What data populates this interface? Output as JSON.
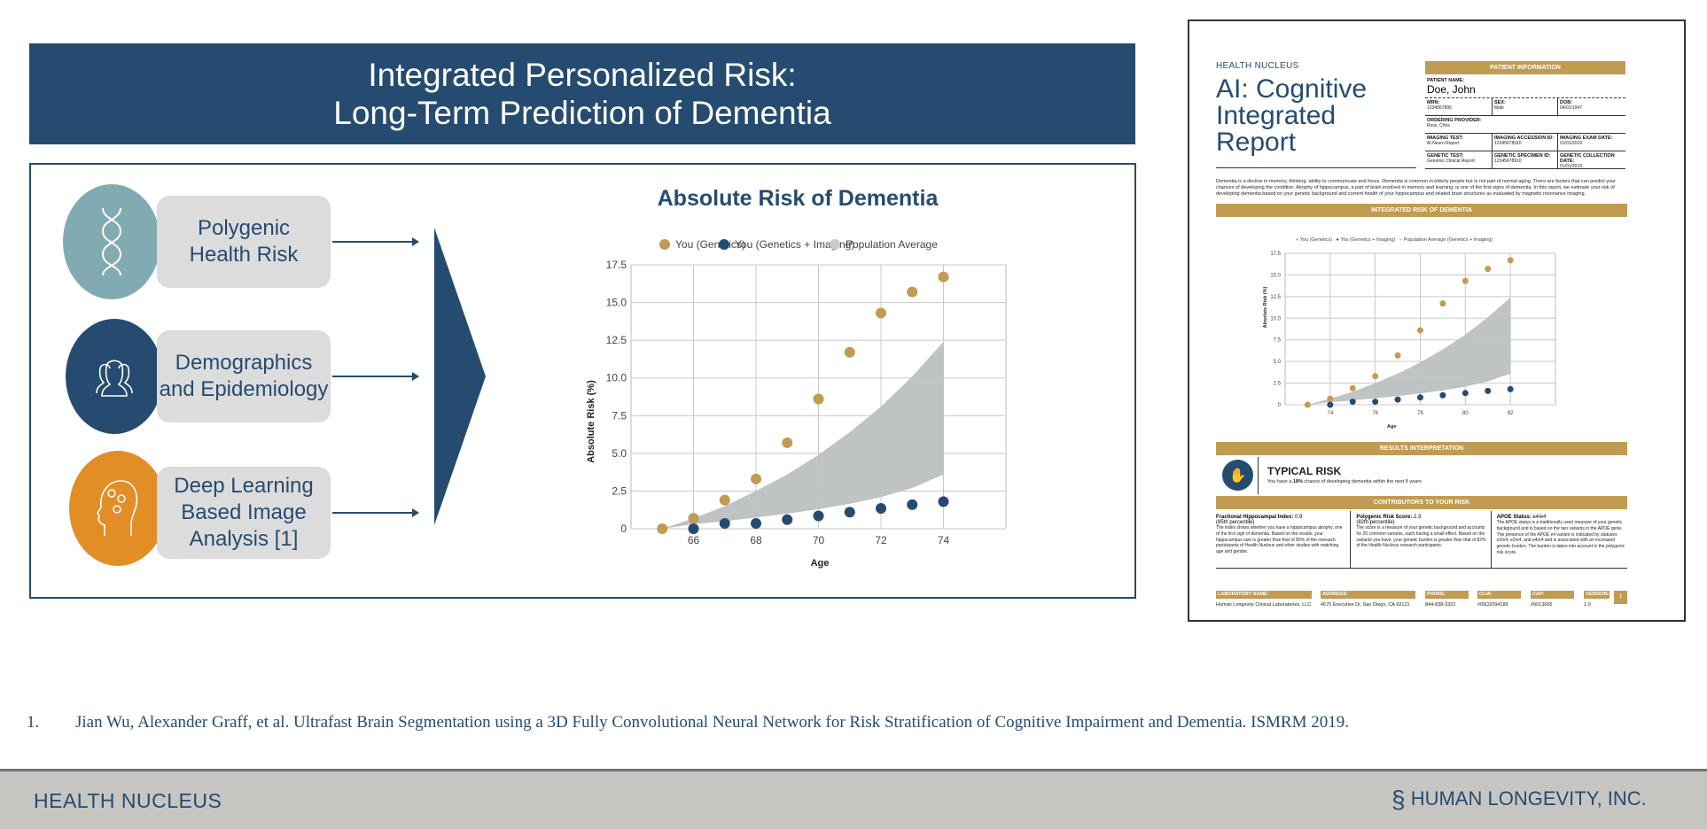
{
  "slide": {
    "title_line1": "Integrated Personalized Risk:",
    "title_line2": "Long-Term Prediction of Dementia",
    "inputs": [
      {
        "icon": "dna-icon",
        "line1": "Polygenic",
        "line2": "Health Risk",
        "color": "#82aab2"
      },
      {
        "icon": "people-icon",
        "line1": "Demographics",
        "line2": "and Epidemiology",
        "color": "#264b70"
      },
      {
        "icon": "head-gears-icon",
        "line1": "Deep Learning",
        "line2": "Based Image",
        "line3": "Analysis [1]",
        "color": "#e38d26"
      }
    ],
    "citation_number": "1.",
    "citation": "Jian Wu, Alexander Graff, et al. Ultrafast Brain Segmentation using a 3D Fully Convolutional Neural Network for Risk Stratification of Cognitive Impairment and Dementia. ISMRM 2019.",
    "footer_left": "HEALTH NUCLEUS",
    "footer_right": "HUMAN LONGEVITY, INC."
  },
  "colors": {
    "navy": "#264b70",
    "gold": "#c19b52",
    "band": "#bcc0c0"
  },
  "chart_data": [
    {
      "type": "scatter",
      "title": "Absolute Risk of Dementia",
      "xlabel": "Age",
      "ylabel": "Absolute Risk (%)",
      "legend": [
        "You (Genetics)",
        "You (Genetics + Imaging)",
        "Population Average"
      ],
      "legend_position": "top",
      "xlim": [
        64,
        76
      ],
      "ylim": [
        0,
        17.5
      ],
      "xticks": [
        66,
        68,
        70,
        72,
        74
      ],
      "yticks": [
        "0",
        "2.5",
        "5.0",
        "7.5",
        "10.0",
        "12.5",
        "15.0",
        "17.5"
      ],
      "grid": true,
      "series": [
        {
          "name": "You (Genetics)",
          "color": "#c19b52",
          "x": [
            65,
            66,
            67,
            68,
            69,
            70,
            71,
            72,
            73,
            74
          ],
          "y": [
            0,
            0.7,
            1.9,
            3.3,
            5.7,
            8.6,
            11.7,
            14.3,
            15.7,
            16.7
          ]
        },
        {
          "name": "You (Genetics + Imaging)",
          "color": "#264b70",
          "x": [
            66,
            67,
            68,
            69,
            70,
            71,
            72,
            73,
            74
          ],
          "y": [
            0,
            0.35,
            0.35,
            0.6,
            0.85,
            1.1,
            1.35,
            1.6,
            1.8
          ]
        },
        {
          "name": "Population Average",
          "type": "band",
          "color": "#bcc0c0",
          "x": [
            65,
            66,
            67,
            68,
            69,
            70,
            71,
            72,
            73,
            74
          ],
          "upper": [
            0,
            0.7,
            1.5,
            2.5,
            3.6,
            4.9,
            6.4,
            8.1,
            10.1,
            12.4
          ],
          "lower": [
            0,
            0.3,
            0.5,
            0.75,
            1.0,
            1.3,
            1.65,
            2.1,
            2.7,
            3.6
          ]
        }
      ]
    },
    {
      "type": "scatter",
      "xlabel": "Age",
      "ylabel": "Absolute Risk (%)",
      "legend": [
        "You (Genetics)",
        "You (Genetics + Imaging)",
        "Population Average (Genetics + Imaging)"
      ],
      "legend_position": "top",
      "xlim": [
        72,
        84
      ],
      "ylim": [
        0,
        17.5
      ],
      "xticks": [
        74,
        76,
        78,
        80,
        82
      ],
      "yticks": [
        "0",
        "2.5",
        "5.0",
        "7.5",
        "10.0",
        "12.5",
        "15.0",
        "17.5"
      ],
      "grid": true,
      "series": [
        {
          "name": "You (Genetics)",
          "color": "#c19b52",
          "x": [
            73,
            74,
            75,
            76,
            77,
            78,
            79,
            80,
            81,
            82
          ],
          "y": [
            0,
            0.7,
            1.9,
            3.3,
            5.7,
            8.6,
            11.7,
            14.3,
            15.7,
            16.7
          ]
        },
        {
          "name": "You (Genetics + Imaging)",
          "color": "#264b70",
          "x": [
            74,
            75,
            76,
            77,
            78,
            79,
            80,
            81,
            82
          ],
          "y": [
            0,
            0.35,
            0.35,
            0.6,
            0.85,
            1.1,
            1.35,
            1.6,
            1.8
          ]
        },
        {
          "name": "Population Average (Genetics + Imaging)",
          "type": "band",
          "color": "#bcc0c0",
          "x": [
            73,
            74,
            75,
            76,
            77,
            78,
            79,
            80,
            81,
            82
          ],
          "upper": [
            0,
            0.7,
            1.5,
            2.5,
            3.6,
            4.9,
            6.4,
            8.1,
            10.1,
            12.4
          ],
          "lower": [
            0,
            0.3,
            0.5,
            0.75,
            1.0,
            1.3,
            1.65,
            2.1,
            2.7,
            3.6
          ]
        }
      ]
    }
  ],
  "report": {
    "brand": "HEALTH NUCLEUS",
    "title1": "AI: Cognitive",
    "title2": "Integrated",
    "title3": "Report",
    "patient_header": "PATIENT INFORMATION",
    "patient_name_label": "PATIENT NAME:",
    "patient_name": "Doe, John",
    "mrn_label": "MRN:",
    "mrn": "1234567890",
    "sex_label": "SEX:",
    "sex": "Male",
    "dob_label": "DOB:",
    "dob": "04/01/1947",
    "provider_label": "ORDERING PROVIDER:",
    "provider": "Ross, Chris",
    "imaging_test_label": "IMAGING TEST:",
    "imaging_test": "AI Neuro Report",
    "imaging_id_label": "IMAGING ACCESSION ID:",
    "imaging_id": "12345678910",
    "imaging_date_label": "IMAGING EXAM DATE:",
    "imaging_date": "01/01/2019",
    "genetic_test_label": "GENETIC TEST:",
    "genetic_test": "Genomic Clinical Report",
    "genetic_id_label": "GENETIC SPECIMEN ID:",
    "genetic_id": "12345678910",
    "genetic_date_label": "GENETIC COLLECTION DATE:",
    "genetic_date": "01/01/2019",
    "intro": "Dementia is a decline in memory, thinking, ability to communicate and focus. Dementia is common in elderly people but is not part of normal aging. There are factors that can predict your chances of developing the condition. Atrophy of hippocampus, a part of brain involved in memory and learning, is one of the first signs of dementia. In this report, we estimate your risk of developing dementia based on your genetic background and current health of your hippocampus and related brain structures as evaluated by magnetic resonance imaging.",
    "risk_header": "INTEGRATED RISK OF DEMENTIA",
    "results_header": "RESULTS INTERPRETATION",
    "risk_level": "TYPICAL RISK",
    "risk_text_pre": "You have a ",
    "risk_pct": "18%",
    "risk_text_post": " chance of developing dementia within the next 8 years",
    "contributors_header": "CONTRIBUTORS TO YOUR RISK",
    "contributors": [
      {
        "title": "Fractional Hippocampal Index:",
        "value": "0.9",
        "sub": "(85th percentile)",
        "text": "The index shows whether you have a hippocampus atrophy, one of the first sign of dementia. Based on the results, your hippocampus size is greater than that of 85% of the research participants of Health Nucleus and other studies with matching age and gender."
      },
      {
        "title": "Polygenic Risk Score:",
        "value": "2.3",
        "sub": "(82th percentile)",
        "text": "The score is a measure of your genetic background and accounts for 20 common variants, each having a small effect. Based on the variants you have, your genetic burden is greater than that of 82% of the Health Nucleus research participants."
      },
      {
        "title": "APOE Status:",
        "value": "e4/e4",
        "sub": "",
        "text": "The APOE status is a traditionally used measure of your genetic background and is based on the two variants in the APOE gene. The presence of the APOE e4 variant is indicated by statuses e3/e4, e2/e4, and e4/e4 and is associated with an increased genetic burden. The burden is taken into account in the polygenic risk score."
      }
    ],
    "footer": [
      {
        "label": "LABORATORY NAME:",
        "value": "Human Longevity Clinical Laboratories, LLC"
      },
      {
        "label": "ADDRESS:",
        "value": "4570 Executive Dr, San Diego, CA 92121"
      },
      {
        "label": "PHONE:",
        "value": "844-838-3322"
      },
      {
        "label": "CLIA:",
        "value": "#05D2094189"
      },
      {
        "label": "CAP:",
        "value": "#9013665"
      },
      {
        "label": "VERSION:",
        "value": "1.0"
      }
    ],
    "page": "1"
  }
}
